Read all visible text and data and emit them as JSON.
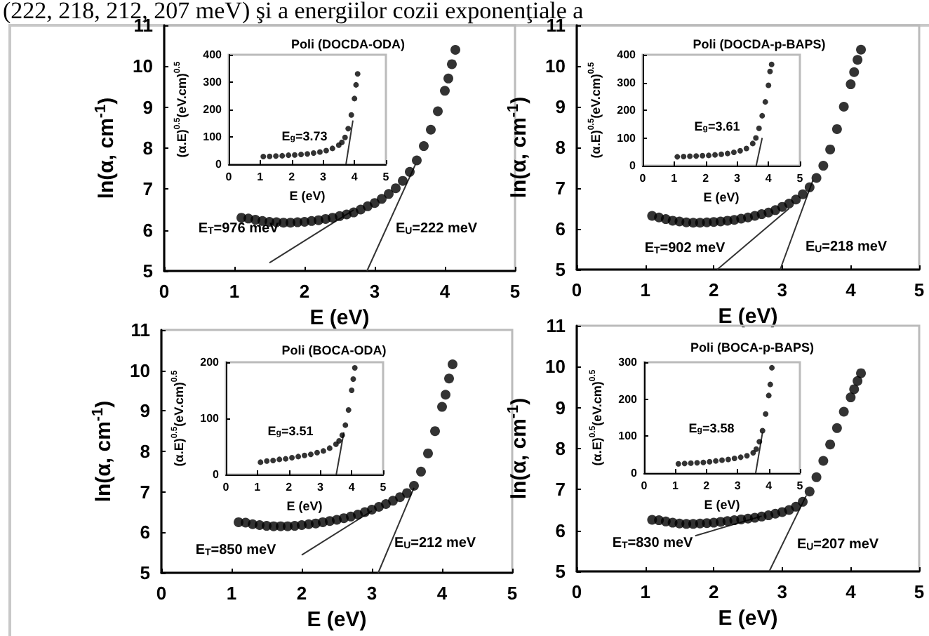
{
  "chart_data": [
    {
      "type": "other",
      "title": "(222, 218, 212, 207 meV) şi a energiilor cozii exponenţiale a"
    },
    {
      "type": "scatter",
      "xlabel": "E (eV)",
      "ylabel": "ln(α, cm$^{-1}$)",
      "xlim": [
        0,
        5
      ],
      "ylim": [
        5,
        11
      ],
      "xticks": [
        0,
        1,
        2,
        3,
        4,
        5
      ],
      "yticks": [
        5,
        6,
        7,
        8,
        9,
        10,
        11
      ],
      "series": [
        {
          "type": "scatter",
          "marker": "circle",
          "color": "#000000",
          "x": [
            1.1,
            1.2,
            1.3,
            1.4,
            1.5,
            1.6,
            1.7,
            1.8,
            1.9,
            2.0,
            2.1,
            2.2,
            2.3,
            2.4,
            2.5,
            2.6,
            2.7,
            2.8,
            2.9,
            3.0,
            3.1,
            3.2,
            3.3,
            3.4,
            3.5,
            3.6,
            3.7,
            3.8,
            3.9,
            4.0,
            4.05,
            4.1,
            4.15
          ],
          "values": [
            6.3,
            6.28,
            6.25,
            6.22,
            6.2,
            6.19,
            6.18,
            6.18,
            6.19,
            6.2,
            6.22,
            6.24,
            6.27,
            6.3,
            6.34,
            6.38,
            6.43,
            6.5,
            6.58,
            6.66,
            6.76,
            6.88,
            7.02,
            7.2,
            7.42,
            7.7,
            8.05,
            8.45,
            8.9,
            9.4,
            9.7,
            10.05,
            10.4
          ]
        },
        {
          "type": "line",
          "color": "#333333",
          "x": [
            1.5,
            2.7
          ],
          "values": [
            5.2,
            6.49
          ]
        },
        {
          "type": "line",
          "color": "#333333",
          "x": [
            2.89,
            3.58
          ],
          "values": [
            5,
            7.6
          ]
        }
      ],
      "annotations": [
        "E$_{T}$=976 meV",
        "E$_{U}$=222 meV"
      ]
    },
    {
      "type": "scatter",
      "title": "Poli (DOCDA-ODA)",
      "xlabel": "E (eV)",
      "ylabel": "(α.E)$^{0.5}$(eV.cm)$^{0.5}$",
      "xlim": [
        0,
        5
      ],
      "ylim": [
        0,
        400
      ],
      "xticks": [
        0,
        1,
        2,
        3,
        4,
        5
      ],
      "yticks": [
        0,
        100,
        200,
        300,
        400
      ],
      "series": [
        {
          "type": "scatter",
          "marker": "circle",
          "color": "#000000",
          "x": [
            1.1,
            1.3,
            1.5,
            1.7,
            1.9,
            2.1,
            2.3,
            2.5,
            2.7,
            2.9,
            3.1,
            3.3,
            3.5,
            3.6,
            3.7,
            3.8,
            3.9,
            4.0,
            4.05,
            4.1
          ],
          "values": [
            28,
            29,
            30,
            31,
            33,
            34,
            36,
            38,
            41,
            45,
            50,
            58,
            70,
            80,
            98,
            130,
            180,
            240,
            290,
            330
          ]
        },
        {
          "type": "line",
          "color": "#333333",
          "x": [
            3.73,
            3.95
          ],
          "values": [
            0,
            160
          ]
        }
      ],
      "annotations": [
        "E$_{g}$=3.73"
      ]
    },
    {
      "type": "scatter",
      "xlabel": "E (eV)",
      "ylabel": "ln(α, cm$^{-1}$)",
      "xlim": [
        0,
        5
      ],
      "ylim": [
        5,
        11
      ],
      "xticks": [
        0,
        1,
        2,
        3,
        4,
        5
      ],
      "yticks": [
        5,
        6,
        7,
        8,
        9,
        10,
        11
      ],
      "series": [
        {
          "type": "scatter",
          "marker": "circle",
          "color": "#000000",
          "x": [
            1.1,
            1.2,
            1.3,
            1.4,
            1.5,
            1.6,
            1.7,
            1.8,
            1.9,
            2.0,
            2.1,
            2.2,
            2.3,
            2.4,
            2.5,
            2.6,
            2.7,
            2.8,
            2.9,
            3.0,
            3.1,
            3.2,
            3.3,
            3.4,
            3.5,
            3.6,
            3.7,
            3.8,
            3.9,
            4.0,
            4.05,
            4.1,
            4.15
          ],
          "values": [
            6.32,
            6.28,
            6.24,
            6.2,
            6.18,
            6.16,
            6.15,
            6.15,
            6.16,
            6.17,
            6.18,
            6.2,
            6.22,
            6.25,
            6.28,
            6.32,
            6.36,
            6.4,
            6.46,
            6.54,
            6.62,
            6.72,
            6.85,
            7.02,
            7.25,
            7.55,
            7.95,
            8.45,
            9.0,
            9.55,
            9.85,
            10.15,
            10.4
          ]
        },
        {
          "type": "line",
          "color": "#333333",
          "x": [
            2.05,
            3.1
          ],
          "values": [
            5,
            6.5
          ]
        },
        {
          "type": "line",
          "color": "#333333",
          "x": [
            2.97,
            3.45
          ],
          "values": [
            5,
            7.2
          ]
        }
      ],
      "annotations": [
        "E$_{T}$=902 meV",
        "E$_{U}$=218 meV"
      ]
    },
    {
      "type": "scatter",
      "title": "Poli (DOCDA-p-BAPS)",
      "xlabel": "E (eV)",
      "ylabel": "(α.E)$^{0.5}$(eV.cm)$^{0.5}$",
      "xlim": [
        0,
        5
      ],
      "ylim": [
        0,
        400
      ],
      "xticks": [
        0,
        1,
        2,
        3,
        4,
        5
      ],
      "yticks": [
        0,
        100,
        200,
        300,
        400
      ],
      "series": [
        {
          "type": "scatter",
          "marker": "circle",
          "color": "#000000",
          "x": [
            1.1,
            1.3,
            1.5,
            1.7,
            1.9,
            2.1,
            2.3,
            2.5,
            2.7,
            2.9,
            3.1,
            3.3,
            3.5,
            3.6,
            3.7,
            3.8,
            3.9,
            4.0,
            4.05,
            4.1
          ],
          "values": [
            32,
            33,
            34,
            35,
            36,
            37,
            39,
            41,
            44,
            48,
            54,
            62,
            80,
            100,
            135,
            180,
            230,
            290,
            340,
            365
          ]
        },
        {
          "type": "line",
          "color": "#333333",
          "x": [
            3.61,
            3.8
          ],
          "values": [
            0,
            100
          ]
        }
      ],
      "annotations": [
        "E$_{g}$=3.61"
      ]
    },
    {
      "type": "scatter",
      "xlabel": "E (eV)",
      "ylabel": "ln(α, cm$^{-1}$)",
      "xlim": [
        0,
        5
      ],
      "ylim": [
        5,
        11
      ],
      "xticks": [
        0,
        1,
        2,
        3,
        4,
        5
      ],
      "yticks": [
        5,
        6,
        7,
        8,
        9,
        10,
        11
      ],
      "series": [
        {
          "type": "scatter",
          "marker": "circle",
          "color": "#000000",
          "x": [
            1.1,
            1.2,
            1.3,
            1.4,
            1.5,
            1.6,
            1.7,
            1.8,
            1.9,
            2.0,
            2.1,
            2.2,
            2.3,
            2.4,
            2.5,
            2.6,
            2.7,
            2.8,
            2.9,
            3.0,
            3.1,
            3.2,
            3.3,
            3.4,
            3.5,
            3.6,
            3.7,
            3.8,
            3.9,
            4.0,
            4.05,
            4.1,
            4.15
          ],
          "values": [
            6.25,
            6.24,
            6.2,
            6.18,
            6.16,
            6.15,
            6.15,
            6.15,
            6.16,
            6.18,
            6.2,
            6.22,
            6.25,
            6.28,
            6.31,
            6.35,
            6.39,
            6.44,
            6.5,
            6.56,
            6.63,
            6.7,
            6.78,
            6.87,
            6.97,
            7.15,
            7.5,
            7.95,
            8.5,
            9.1,
            9.4,
            9.8,
            10.15
          ]
        },
        {
          "type": "line",
          "color": "#333333",
          "x": [
            2.0,
            3.0
          ],
          "values": [
            5.44,
            6.53
          ]
        },
        {
          "type": "line",
          "color": "#333333",
          "x": [
            3.09,
            3.6
          ],
          "values": [
            5,
            7.1
          ]
        }
      ],
      "annotations": [
        "E$_{T}$=850 meV",
        "E$_{U}$=212 meV"
      ]
    },
    {
      "type": "scatter",
      "title": "Poli (BOCA-ODA)",
      "xlabel": "E (eV)",
      "ylabel": "(α.E)$^{0.5}$(eV.cm)$^{0.5}$",
      "xlim": [
        0,
        5
      ],
      "ylim": [
        0,
        200
      ],
      "xticks": [
        0,
        1,
        2,
        3,
        4,
        5
      ],
      "yticks": [
        0,
        100,
        200
      ],
      "series": [
        {
          "type": "scatter",
          "marker": "circle",
          "color": "#000000",
          "x": [
            1.1,
            1.3,
            1.5,
            1.7,
            1.9,
            2.1,
            2.3,
            2.5,
            2.7,
            2.9,
            3.1,
            3.3,
            3.5,
            3.6,
            3.7,
            3.8,
            3.9,
            4.0,
            4.05,
            4.1
          ],
          "values": [
            22,
            24,
            25,
            27,
            28,
            30,
            32,
            34,
            36,
            39,
            42,
            47,
            54,
            60,
            70,
            88,
            115,
            150,
            170,
            190
          ]
        },
        {
          "type": "line",
          "color": "#333333",
          "x": [
            3.51,
            3.75
          ],
          "values": [
            0,
            75
          ]
        }
      ],
      "annotations": [
        "E$_{g}$=3.51"
      ]
    },
    {
      "type": "scatter",
      "xlabel": "E (eV)",
      "ylabel": "ln(α, cm$^{-1}$)",
      "xlim": [
        0,
        5
      ],
      "ylim": [
        5,
        11
      ],
      "xticks": [
        0,
        1,
        2,
        3,
        4,
        5
      ],
      "yticks": [
        5,
        6,
        7,
        8,
        9,
        10,
        11
      ],
      "series": [
        {
          "type": "scatter",
          "marker": "circle",
          "color": "#000000",
          "x": [
            1.1,
            1.2,
            1.3,
            1.4,
            1.5,
            1.6,
            1.7,
            1.8,
            1.9,
            2.0,
            2.1,
            2.2,
            2.3,
            2.4,
            2.5,
            2.6,
            2.7,
            2.8,
            2.9,
            3.0,
            3.1,
            3.2,
            3.3,
            3.4,
            3.5,
            3.6,
            3.7,
            3.8,
            3.9,
            4.0,
            4.05,
            4.1,
            4.15
          ],
          "values": [
            6.26,
            6.25,
            6.22,
            6.19,
            6.17,
            6.16,
            6.16,
            6.17,
            6.18,
            6.19,
            6.21,
            6.23,
            6.25,
            6.27,
            6.29,
            6.31,
            6.34,
            6.37,
            6.41,
            6.45,
            6.5,
            6.58,
            6.7,
            6.95,
            7.3,
            7.7,
            8.1,
            8.5,
            8.9,
            9.25,
            9.45,
            9.65,
            9.84
          ]
        },
        {
          "type": "line",
          "color": "#333333",
          "x": [
            1.73,
            2.7
          ],
          "values": [
            5.87,
            6.35
          ]
        },
        {
          "type": "line",
          "color": "#333333",
          "x": [
            2.81,
            3.35
          ],
          "values": [
            5,
            6.85
          ]
        }
      ],
      "annotations": [
        "E$_{T}$=830 meV",
        "E$_{U}$=207 meV"
      ]
    },
    {
      "type": "scatter",
      "title": "Poli (BOCA-p-BAPS)",
      "xlabel": "E (eV)",
      "ylabel": "(α.E)$^{0.5}$(eV.cm)$^{0.5}$",
      "xlim": [
        0,
        5
      ],
      "ylim": [
        0,
        300
      ],
      "xticks": [
        0,
        1,
        2,
        3,
        4,
        5
      ],
      "yticks": [
        0,
        100,
        200,
        300
      ],
      "series": [
        {
          "type": "scatter",
          "marker": "circle",
          "color": "#000000",
          "x": [
            1.1,
            1.3,
            1.5,
            1.7,
            1.9,
            2.1,
            2.3,
            2.5,
            2.7,
            2.9,
            3.1,
            3.3,
            3.5,
            3.6,
            3.7,
            3.8,
            3.9,
            4.0,
            4.05,
            4.1
          ],
          "values": [
            25,
            26,
            27,
            28,
            29,
            31,
            33,
            35,
            37,
            40,
            43,
            47,
            55,
            65,
            85,
            115,
            160,
            210,
            240,
            285
          ]
        },
        {
          "type": "line",
          "color": "#333333",
          "x": [
            3.58,
            3.8
          ],
          "values": [
            0,
            110
          ]
        }
      ],
      "annotations": [
        "E$_{g}$=3.58"
      ]
    }
  ]
}
